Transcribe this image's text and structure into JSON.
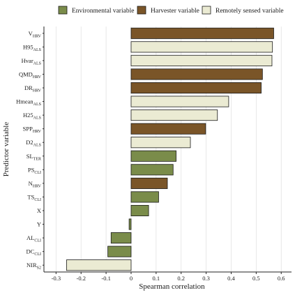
{
  "chart_data": {
    "type": "bar",
    "orientation": "horizontal",
    "xlabel": "Spearman correlation",
    "ylabel": "Predictor variable",
    "xlim": [
      -0.34,
      0.63
    ],
    "xticks": [
      -0.3,
      -0.2,
      -0.1,
      0,
      0.1,
      0.2,
      0.3,
      0.4,
      0.5,
      0.6
    ],
    "xtick_labels": [
      "-0.3",
      "-0.2",
      "-0.1",
      "0",
      "0.1",
      "0.2",
      "0.3",
      "0.4",
      "0.5",
      "0.6"
    ],
    "grid": "vertical",
    "legend": {
      "position": "top",
      "entries": [
        {
          "key": "environmental",
          "label": "Environmental variable",
          "color": "#7a8c4a"
        },
        {
          "key": "harvester",
          "label": "Harvester variable",
          "color": "#7a5528"
        },
        {
          "key": "remote",
          "label": "Remotely sensed variable",
          "color": "#ebebd3"
        }
      ]
    },
    "bars": [
      {
        "base": "V",
        "sub": "HRV",
        "value": 0.57,
        "group": "harvester"
      },
      {
        "base": "H95",
        "sub": "ALS",
        "value": 0.565,
        "group": "remote"
      },
      {
        "base": "Hvar",
        "sub": "ALS",
        "value": 0.563,
        "group": "remote"
      },
      {
        "base": "QMD",
        "sub": "HRV",
        "value": 0.525,
        "group": "harvester"
      },
      {
        "base": "DR",
        "sub": "HRV",
        "value": 0.52,
        "group": "harvester"
      },
      {
        "base": "Hmean",
        "sub": "ALS",
        "value": 0.39,
        "group": "remote"
      },
      {
        "base": "H25",
        "sub": "ALS",
        "value": 0.345,
        "group": "remote"
      },
      {
        "base": "SPP",
        "sub": "HRV",
        "value": 0.298,
        "group": "harvester"
      },
      {
        "base": "D2",
        "sub": "ALS",
        "value": 0.237,
        "group": "remote"
      },
      {
        "base": "SL",
        "sub": "TER",
        "value": 0.18,
        "group": "environmental"
      },
      {
        "base": "PS",
        "sub": "CLI",
        "value": 0.168,
        "group": "environmental"
      },
      {
        "base": "N",
        "sub": "HRV",
        "value": 0.145,
        "group": "harvester"
      },
      {
        "base": "TS",
        "sub": "CLI",
        "value": 0.11,
        "group": "environmental"
      },
      {
        "base": "X",
        "sub": "",
        "value": 0.07,
        "group": "environmental"
      },
      {
        "base": "Y",
        "sub": "",
        "value": -0.008,
        "group": "environmental"
      },
      {
        "base": "AL",
        "sub": "CLI",
        "value": -0.08,
        "group": "environmental"
      },
      {
        "base": "DC",
        "sub": "CLI",
        "value": -0.093,
        "group": "environmental"
      },
      {
        "base": "NIR",
        "sub": "S2",
        "value": -0.258,
        "group": "remote"
      }
    ]
  }
}
